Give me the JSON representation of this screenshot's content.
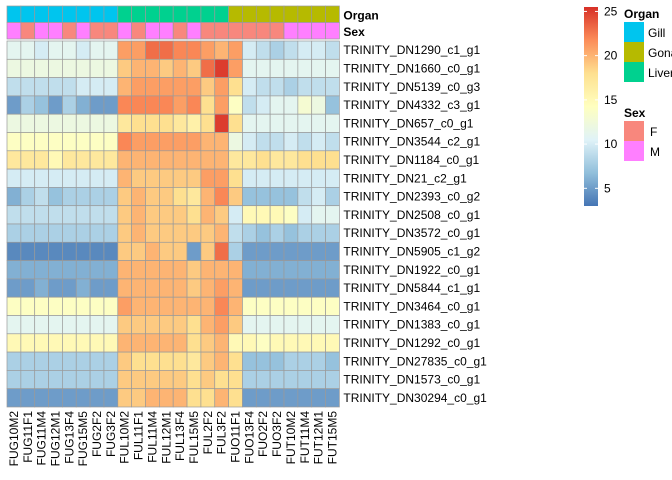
{
  "chart_data": {
    "type": "heatmap",
    "columns": [
      "FUG10M2",
      "FUG11F1",
      "FUG11M4",
      "FUG12M1",
      "FUG13F4",
      "FUG15M5",
      "FUG2F2",
      "FUG3F2",
      "FUL10M2",
      "FUL11F1",
      "FUL11M4",
      "FUL12M1",
      "FUL13F4",
      "FUL15M5",
      "FUL2F2",
      "FUL3F2",
      "FUO11F1",
      "FUO13F4",
      "FUO2F2",
      "FUO3F2",
      "FUT10M2",
      "FUT11M4",
      "FUT12M1",
      "FUT15M5"
    ],
    "rows": [
      "TRINITY_DN1290_c1_g1",
      "TRINITY_DN1660_c0_g1",
      "TRINITY_DN5139_c0_g3",
      "TRINITY_DN4332_c3_g1",
      "TRINITY_DN657_c0_g1",
      "TRINITY_DN3544_c2_g1",
      "TRINITY_DN1184_c0_g1",
      "TRINITY_DN21_c2_g1",
      "TRINITY_DN2393_c0_g2",
      "TRINITY_DN2508_c0_g1",
      "TRINITY_DN3572_c0_g1",
      "TRINITY_DN5905_c1_g2",
      "TRINITY_DN1922_c0_g1",
      "TRINITY_DN5844_c1_g1",
      "TRINITY_DN3464_c0_g1",
      "TRINITY_DN1383_c0_g1",
      "TRINITY_DN1292_c0_g1",
      "TRINITY_DN27835_c0_g1",
      "TRINITY_DN1573_c0_g1",
      "TRINITY_DN30294_c0_g1"
    ],
    "values": [
      [
        11,
        11,
        10,
        11,
        11,
        10,
        11,
        11,
        21,
        21,
        23,
        23,
        22,
        22,
        21,
        20,
        21,
        10,
        9,
        8,
        9,
        10,
        10,
        9
      ],
      [
        12,
        12,
        12,
        12,
        12,
        12,
        12,
        12,
        19,
        20,
        20,
        19,
        20,
        19,
        23,
        25,
        21,
        11,
        11,
        11,
        11,
        11,
        11,
        11
      ],
      [
        9,
        9,
        9,
        9,
        9,
        10,
        10,
        10,
        20,
        21,
        21,
        21,
        21,
        21,
        19,
        21,
        18,
        10,
        9,
        9,
        8,
        9,
        9,
        9
      ],
      [
        5,
        8,
        7,
        5,
        8,
        6,
        5,
        5,
        22,
        22,
        22,
        22,
        21,
        22,
        18,
        21,
        14,
        9,
        10,
        11,
        11,
        13,
        12,
        7
      ],
      [
        12,
        12,
        12,
        12,
        12,
        12,
        12,
        12,
        17,
        18,
        18,
        18,
        17,
        16,
        18,
        25,
        18,
        11,
        11,
        11,
        11,
        11,
        11,
        11
      ],
      [
        14,
        14,
        14,
        14,
        14,
        14,
        14,
        14,
        22,
        21,
        21,
        21,
        21,
        21,
        20,
        20,
        12,
        10,
        9,
        9,
        10,
        9,
        10,
        9
      ],
      [
        17,
        17,
        17,
        15,
        17,
        17,
        17,
        17,
        20,
        20,
        20,
        20,
        20,
        20,
        20,
        20,
        17,
        17,
        18,
        17,
        17,
        18,
        18,
        18
      ],
      [
        10,
        10,
        10,
        10,
        10,
        10,
        10,
        10,
        20,
        19,
        19,
        19,
        19,
        19,
        21,
        21,
        18,
        10,
        10,
        10,
        10,
        10,
        10,
        10
      ],
      [
        6,
        8,
        9,
        7,
        8,
        8,
        8,
        8,
        19,
        20,
        19,
        19,
        18,
        17,
        20,
        22,
        19,
        7,
        7,
        7,
        7,
        9,
        10,
        8
      ],
      [
        9,
        9,
        9,
        9,
        9,
        9,
        9,
        9,
        19,
        20,
        19,
        19,
        19,
        18,
        20,
        19,
        10,
        15,
        15,
        15,
        14,
        10,
        11,
        11
      ],
      [
        8,
        8,
        8,
        8,
        8,
        8,
        8,
        8,
        19,
        20,
        19,
        19,
        19,
        19,
        19,
        20,
        9,
        8,
        7,
        8,
        7,
        8,
        8,
        8
      ],
      [
        4,
        4,
        4,
        4,
        4,
        4,
        4,
        4,
        19,
        19,
        20,
        19,
        19,
        5,
        19,
        23,
        8,
        5,
        5,
        5,
        5,
        5,
        5,
        5
      ],
      [
        6,
        6,
        6,
        6,
        6,
        6,
        6,
        6,
        20,
        20,
        20,
        20,
        20,
        19,
        20,
        20,
        20,
        6,
        6,
        6,
        6,
        6,
        6,
        6
      ],
      [
        5,
        5,
        6,
        5,
        5,
        6,
        5,
        5,
        20,
        20,
        20,
        20,
        20,
        19,
        20,
        21,
        20,
        5,
        5,
        5,
        5,
        5,
        5,
        5
      ],
      [
        14,
        14,
        14,
        14,
        14,
        14,
        14,
        14,
        21,
        20,
        20,
        20,
        20,
        20,
        20,
        22,
        20,
        14,
        14,
        14,
        14,
        14,
        14,
        14
      ],
      [
        11,
        11,
        11,
        11,
        11,
        11,
        11,
        11,
        19,
        19,
        19,
        19,
        19,
        18,
        20,
        21,
        19,
        11,
        11,
        11,
        11,
        11,
        11,
        11
      ],
      [
        15,
        15,
        15,
        15,
        15,
        15,
        15,
        15,
        20,
        20,
        20,
        20,
        20,
        18,
        19,
        20,
        15,
        15,
        14,
        15,
        15,
        15,
        15,
        15
      ],
      [
        8,
        8,
        8,
        8,
        8,
        8,
        8,
        8,
        19,
        18,
        18,
        18,
        18,
        17,
        19,
        20,
        18,
        7,
        7,
        7,
        8,
        8,
        8,
        7
      ],
      [
        8,
        8,
        8,
        8,
        8,
        8,
        8,
        8,
        19,
        19,
        19,
        19,
        19,
        18,
        19,
        18,
        18,
        8,
        8,
        8,
        8,
        8,
        8,
        8
      ],
      [
        5,
        5,
        5,
        5,
        5,
        5,
        5,
        5,
        19,
        19,
        20,
        20,
        20,
        18,
        18,
        20,
        18,
        5,
        5,
        5,
        5,
        5,
        5,
        5
      ]
    ],
    "annotations": {
      "Organ": [
        "Gill",
        "Gill",
        "Gill",
        "Gill",
        "Gill",
        "Gill",
        "Gill",
        "Gill",
        "Liver",
        "Liver",
        "Liver",
        "Liver",
        "Liver",
        "Liver",
        "Liver",
        "Liver",
        "Gonad",
        "Gonad",
        "Gonad",
        "Gonad",
        "Gonad",
        "Gonad",
        "Gonad",
        "Gonad"
      ],
      "Sex": [
        "M",
        "F",
        "M",
        "M",
        "F",
        "M",
        "F",
        "F",
        "M",
        "F",
        "M",
        "M",
        "F",
        "M",
        "F",
        "F",
        "F",
        "F",
        "F",
        "F",
        "M",
        "M",
        "M",
        "M"
      ]
    },
    "annotation_titles": [
      "Organ",
      "Sex"
    ],
    "colorscale": {
      "min": 3,
      "max": 25.5,
      "stops": [
        "#4575B4",
        "#91BFDB",
        "#E0F3F8",
        "#FFFFBF",
        "#FEE090",
        "#FC8D59",
        "#D73027"
      ],
      "ticks": [
        5,
        10,
        15,
        20,
        25
      ]
    },
    "legend": {
      "organ_title": "Organ",
      "organ": [
        {
          "label": "Gill",
          "color": "#00C5EE"
        },
        {
          "label": "Gonad",
          "color": "#B6BA00"
        },
        {
          "label": "Liver",
          "color": "#00D18F"
        }
      ],
      "sex_title": "Sex",
      "sex": [
        {
          "label": "F",
          "color": "#F8877D"
        },
        {
          "label": "M",
          "color": "#FF7FFF"
        }
      ]
    }
  }
}
